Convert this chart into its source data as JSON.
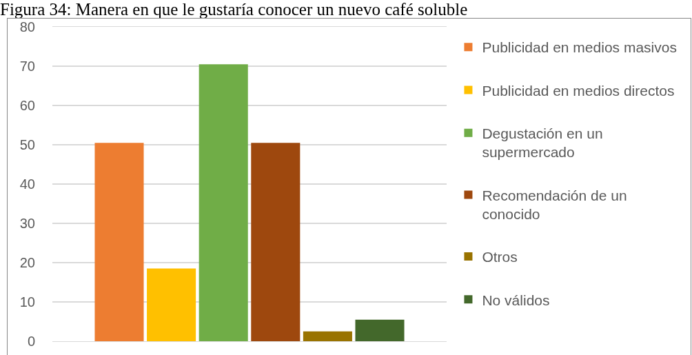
{
  "chart_data": {
    "type": "bar",
    "title": "Figura 34: Manera en que le gustaría conocer un nuevo café soluble",
    "categories": [
      null
    ],
    "series": [
      {
        "name": "Publicidad en medios masivos",
        "color": "#ed7d31",
        "values": [
          50.5
        ]
      },
      {
        "name": "Publicidad en medios directos",
        "color": "#ffc000",
        "values": [
          18.5
        ]
      },
      {
        "name": "Degustación en un supermercado",
        "color": "#70ad47",
        "values": [
          70.5
        ]
      },
      {
        "name": "Recomendación de un conocido",
        "color": "#9e480e",
        "values": [
          50.5
        ]
      },
      {
        "name": "Otros",
        "color": "#997300",
        "values": [
          2.5
        ]
      },
      {
        "name": "No válidos",
        "color": "#43682b",
        "values": [
          5.5
        ]
      }
    ],
    "ylim": [
      0,
      80
    ],
    "yticks": [
      0,
      10,
      20,
      30,
      40,
      50,
      60,
      70,
      80
    ],
    "grid": "y",
    "legend": "right"
  }
}
